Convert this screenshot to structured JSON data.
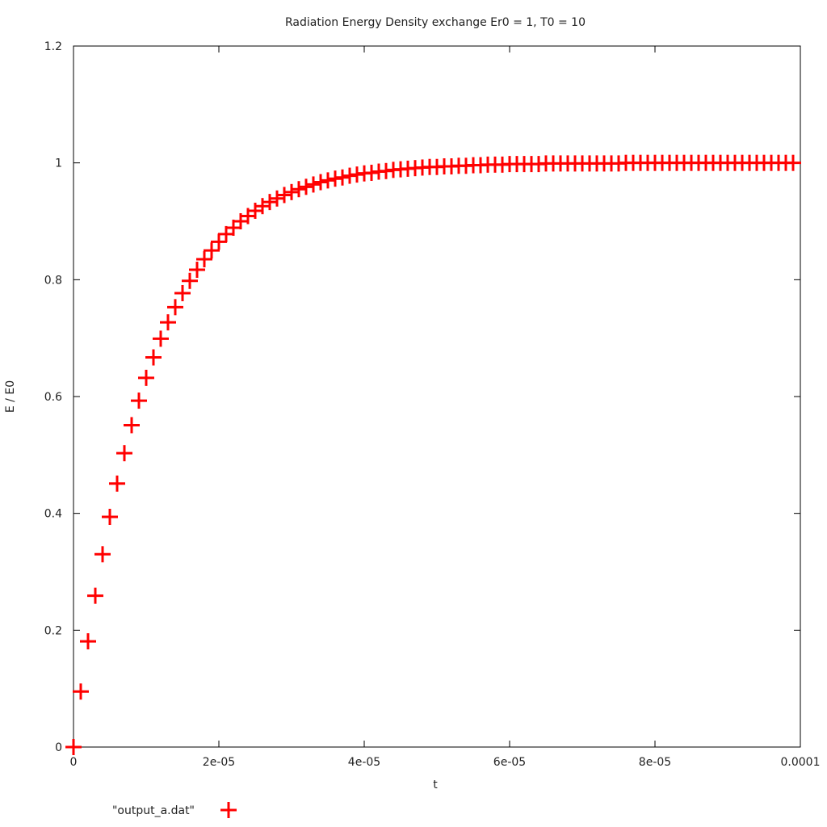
{
  "chart_data": {
    "type": "scatter",
    "title": "Radiation Energy Density exchange Er0 = 1, T0 = 10",
    "xlabel": "t",
    "ylabel": "E / E0",
    "xlim": [
      0,
      0.0001
    ],
    "ylim": [
      0,
      1.2
    ],
    "x_ticks": [
      {
        "value": 0,
        "label": "0"
      },
      {
        "value": 2e-05,
        "label": "2e-05"
      },
      {
        "value": 4e-05,
        "label": "4e-05"
      },
      {
        "value": 6e-05,
        "label": "6e-05"
      },
      {
        "value": 8e-05,
        "label": "8e-05"
      },
      {
        "value": 0.0001,
        "label": "0.0001"
      }
    ],
    "y_ticks": [
      {
        "value": 0,
        "label": "0"
      },
      {
        "value": 0.2,
        "label": "0.2"
      },
      {
        "value": 0.4,
        "label": "0.4"
      },
      {
        "value": 0.6,
        "label": "0.6"
      },
      {
        "value": 0.8,
        "label": "0.8"
      },
      {
        "value": 1,
        "label": "1"
      },
      {
        "value": 1.2,
        "label": "1.2"
      }
    ],
    "grid": false,
    "legend_position": "bottom-left",
    "series": [
      {
        "name": "\"output_a.dat\"",
        "color": "#ff0000",
        "marker": "plus",
        "x": [
          0,
          1e-06,
          2e-06,
          3e-06,
          4e-06,
          5e-06,
          6e-06,
          7e-06,
          8e-06,
          9e-06,
          1e-05,
          1.1e-05,
          1.2e-05,
          1.3e-05,
          1.4e-05,
          1.5e-05,
          1.6e-05,
          1.7e-05,
          1.8e-05,
          1.9e-05,
          2e-05,
          2.1e-05,
          2.2e-05,
          2.3e-05,
          2.4e-05,
          2.5e-05,
          2.6e-05,
          2.7e-05,
          2.8e-05,
          2.9e-05,
          3e-05,
          3.1e-05,
          3.2e-05,
          3.3e-05,
          3.4e-05,
          3.5e-05,
          3.6e-05,
          3.7e-05,
          3.8e-05,
          3.9e-05,
          4e-05,
          4.1e-05,
          4.2e-05,
          4.3e-05,
          4.4e-05,
          4.5e-05,
          4.6e-05,
          4.7e-05,
          4.8e-05,
          4.9e-05,
          5e-05,
          5.1e-05,
          5.2e-05,
          5.3e-05,
          5.4e-05,
          5.5e-05,
          5.6e-05,
          5.7e-05,
          5.8e-05,
          5.9e-05,
          6e-05,
          6.1e-05,
          6.2e-05,
          6.3e-05,
          6.4e-05,
          6.5e-05,
          6.6e-05,
          6.7e-05,
          6.8e-05,
          6.9e-05,
          7e-05,
          7.1e-05,
          7.2e-05,
          7.3e-05,
          7.4e-05,
          7.5e-05,
          7.6e-05,
          7.7e-05,
          7.8e-05,
          7.9e-05,
          8e-05,
          8.1e-05,
          8.2e-05,
          8.3e-05,
          8.4e-05,
          8.5e-05,
          8.6e-05,
          8.7e-05,
          8.8e-05,
          8.9e-05,
          9e-05,
          9.1e-05,
          9.2e-05,
          9.3e-05,
          9.4e-05,
          9.5e-05,
          9.6e-05,
          9.7e-05,
          9.8e-05,
          9.9e-05
        ],
        "y": [
          0,
          0.095,
          0.181,
          0.259,
          0.33,
          0.394,
          0.451,
          0.503,
          0.551,
          0.593,
          0.632,
          0.667,
          0.699,
          0.727,
          0.753,
          0.777,
          0.798,
          0.817,
          0.835,
          0.85,
          0.865,
          0.878,
          0.889,
          0.9,
          0.909,
          0.918,
          0.926,
          0.933,
          0.939,
          0.945,
          0.95,
          0.955,
          0.959,
          0.963,
          0.967,
          0.97,
          0.973,
          0.975,
          0.978,
          0.98,
          0.982,
          0.983,
          0.985,
          0.986,
          0.988,
          0.989,
          0.99,
          0.991,
          0.992,
          0.993,
          0.993,
          0.994,
          0.994,
          0.995,
          0.995,
          0.996,
          0.996,
          0.997,
          0.997,
          0.997,
          0.998,
          0.998,
          0.998,
          0.998,
          0.998,
          0.999,
          0.999,
          0.999,
          0.999,
          0.999,
          0.999,
          0.999,
          0.999,
          0.999,
          0.999,
          0.999,
          1.0,
          1.0,
          1.0,
          1.0,
          1.0,
          1.0,
          1.0,
          1.0,
          1.0,
          1.0,
          1.0,
          1.0,
          1.0,
          1.0,
          1.0,
          1.0,
          1.0,
          1.0,
          1.0,
          1.0,
          1.0,
          1.0,
          1.0,
          1.0
        ]
      }
    ]
  }
}
